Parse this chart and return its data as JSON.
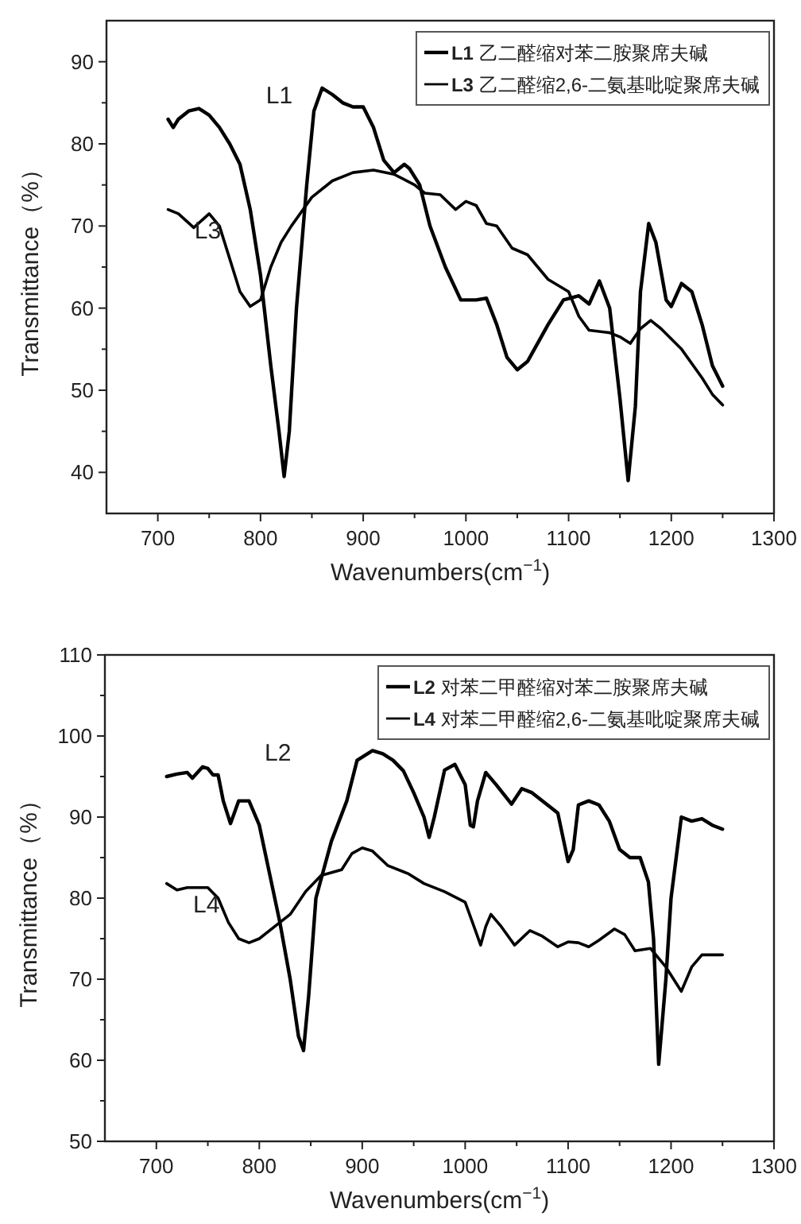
{
  "chart_data": [
    {
      "type": "line",
      "xlabel": "Wavenumbers(cm$^{−1}$)",
      "ylabel": "Transmittance（%）",
      "xlim": [
        650,
        1300
      ],
      "ylim": [
        35,
        95
      ],
      "xticks": [
        700,
        {
          "value": 750,
          "label": null
        },
        800,
        {
          "value": 850,
          "label": null
        },
        900,
        {
          "value": 950,
          "label": null
        },
        1000,
        {
          "value": 1050,
          "label": null
        },
        1100,
        {
          "value": 1150,
          "label": null
        },
        1200,
        {
          "value": 1250,
          "label": null
        },
        1300
      ],
      "yticks": [
        40,
        {
          "value": 45,
          "label": null
        },
        50,
        {
          "value": 55,
          "label": null
        },
        60,
        {
          "value": 65,
          "label": null
        },
        70,
        {
          "value": 75,
          "label": null
        },
        80,
        {
          "value": 85,
          "label": null
        },
        90
      ],
      "legend": "top right",
      "series": [
        {
          "name": "L1 乙二醛缩对苯二胺聚席夫碱",
          "color": "#000000",
          "x": [
            710,
            715,
            720,
            730,
            740,
            750,
            760,
            770,
            780,
            790,
            800,
            810,
            818,
            823,
            828,
            835,
            845,
            852,
            860,
            870,
            880,
            890,
            900,
            910,
            920,
            930,
            940,
            945,
            955,
            965,
            980,
            995,
            1010,
            1020,
            1030,
            1040,
            1050,
            1060,
            1080,
            1095,
            1110,
            1120,
            1130,
            1140,
            1150,
            1158,
            1165,
            1170,
            1178,
            1185,
            1195,
            1200,
            1210,
            1220,
            1230,
            1240,
            1250
          ],
          "values": [
            83,
            82,
            83,
            84,
            84.3,
            83.5,
            82,
            80,
            77.5,
            72,
            64,
            53,
            45,
            39.5,
            45,
            60,
            75,
            84,
            86.8,
            86,
            85,
            84.5,
            84.5,
            82,
            78,
            76.5,
            77.5,
            77,
            75,
            70,
            65,
            61,
            61,
            61.2,
            58,
            54,
            52.5,
            53.5,
            58,
            61,
            61.5,
            60.5,
            63.3,
            60,
            49,
            39,
            48,
            62,
            70.3,
            68,
            61,
            60.2,
            63,
            62,
            58,
            53,
            50.5
          ]
        },
        {
          "name": "L3 乙二醛缩2,6-二氨基吡啶聚席夫碱",
          "color": "#000000",
          "x": [
            710,
            720,
            735,
            750,
            760,
            770,
            780,
            790,
            800,
            810,
            820,
            830,
            850,
            870,
            890,
            910,
            930,
            950,
            960,
            975,
            990,
            1000,
            1010,
            1020,
            1030,
            1045,
            1060,
            1080,
            1100,
            1110,
            1120,
            1140,
            1150,
            1160,
            1170,
            1180,
            1190,
            1210,
            1230,
            1240,
            1250
          ],
          "values": [
            72,
            71.5,
            69.8,
            71.5,
            70,
            66,
            62,
            60.2,
            61,
            65,
            68,
            70,
            73.5,
            75.5,
            76.5,
            76.8,
            76.3,
            75,
            74,
            73.8,
            72,
            73,
            72.5,
            70.3,
            70,
            67.3,
            66.5,
            63.5,
            62,
            59,
            57.3,
            57,
            56.5,
            55.7,
            57.5,
            58.5,
            57.5,
            55,
            51.5,
            49.5,
            48.2
          ]
        }
      ],
      "annotations": [
        "L1",
        "L3"
      ]
    },
    {
      "type": "line",
      "xlabel": "Wavenumbers(cm$^{−1}$)",
      "ylabel": "Transmittance（%）",
      "xlim": [
        650,
        1300
      ],
      "ylim": [
        50,
        110
      ],
      "xticks": [
        700,
        {
          "value": 750,
          "label": null
        },
        800,
        {
          "value": 850,
          "label": null
        },
        900,
        {
          "value": 950,
          "label": null
        },
        1000,
        {
          "value": 1050,
          "label": null
        },
        1100,
        {
          "value": 1150,
          "label": null
        },
        1200,
        {
          "value": 1250,
          "label": null
        },
        1300
      ],
      "yticks": [
        50,
        {
          "value": 55,
          "label": null
        },
        60,
        {
          "value": 65,
          "label": null
        },
        70,
        {
          "value": 75,
          "label": null
        },
        80,
        {
          "value": 85,
          "label": null
        },
        90,
        {
          "value": 95,
          "label": null
        },
        100,
        {
          "value": 105,
          "label": null
        },
        110
      ],
      "legend": "top right",
      "series": [
        {
          "name": "L2 对苯二甲醛缩对苯二胺聚席夫碱",
          "color": "#000000",
          "x": [
            710,
            720,
            730,
            735,
            745,
            750,
            755,
            760,
            765,
            772,
            780,
            790,
            800,
            810,
            820,
            830,
            838,
            843,
            848,
            855,
            870,
            885,
            895,
            910,
            920,
            930,
            940,
            950,
            960,
            965,
            970,
            980,
            990,
            1000,
            1005,
            1008,
            1012,
            1020,
            1030,
            1045,
            1055,
            1065,
            1080,
            1090,
            1100,
            1105,
            1110,
            1120,
            1130,
            1140,
            1150,
            1160,
            1170,
            1178,
            1183,
            1188,
            1195,
            1200,
            1210,
            1220,
            1230,
            1240,
            1250
          ],
          "values": [
            95,
            95.3,
            95.5,
            94.8,
            96.2,
            96,
            95.2,
            95.2,
            92,
            89.2,
            92,
            92,
            89,
            83,
            77,
            70,
            63,
            61.2,
            68,
            80,
            87,
            92,
            97,
            98.2,
            97.8,
            97,
            95.7,
            93,
            90,
            87.5,
            90,
            95.8,
            96.5,
            94,
            89,
            88.8,
            92,
            95.5,
            94,
            91.6,
            93.5,
            93,
            91.5,
            90.5,
            84.5,
            86,
            91.5,
            92,
            91.5,
            89.5,
            86,
            85,
            85,
            82,
            75,
            59.5,
            70,
            80,
            90,
            89.5,
            89.8,
            89,
            88.5
          ]
        },
        {
          "name": "L4 对苯二甲醛缩2,6-二氨基吡啶聚席夫碱",
          "color": "#000000",
          "x": [
            710,
            720,
            730,
            750,
            760,
            770,
            780,
            790,
            800,
            815,
            830,
            845,
            860,
            880,
            890,
            900,
            910,
            925,
            945,
            960,
            980,
            1000,
            1010,
            1015,
            1020,
            1025,
            1035,
            1048,
            1063,
            1075,
            1090,
            1100,
            1110,
            1120,
            1130,
            1145,
            1155,
            1165,
            1180,
            1195,
            1210,
            1220,
            1230,
            1250
          ],
          "values": [
            81.8,
            81,
            81.3,
            81.3,
            80,
            77,
            75,
            74.5,
            75,
            76.5,
            78,
            80.8,
            82.8,
            83.5,
            85.5,
            86.2,
            85.8,
            84,
            83,
            81.8,
            80.8,
            79.5,
            76,
            74.2,
            76.5,
            78,
            76.5,
            74.2,
            76,
            75.3,
            74,
            74.6,
            74.5,
            74,
            74.8,
            76.2,
            75.5,
            73.5,
            73.8,
            71.5,
            68.5,
            71.5,
            73,
            73
          ]
        }
      ],
      "annotations": [
        "L2",
        "L4"
      ]
    }
  ]
}
